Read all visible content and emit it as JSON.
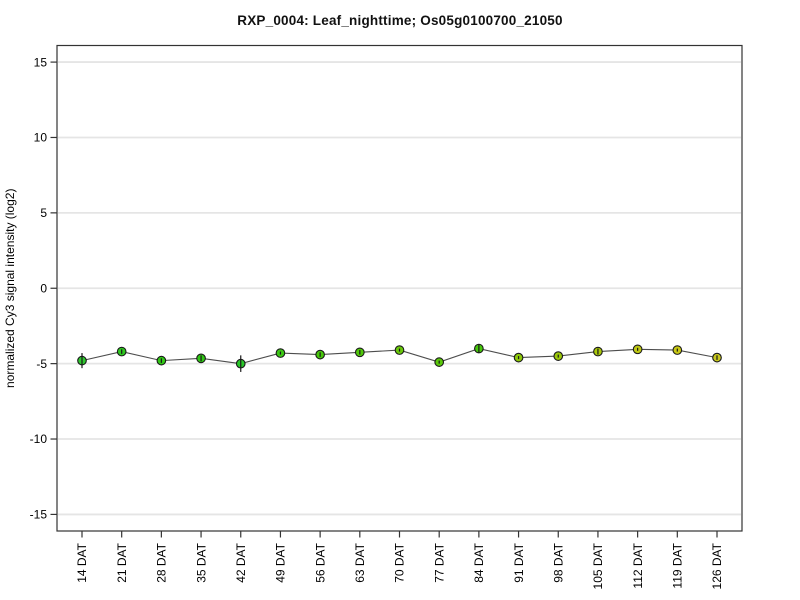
{
  "title": "RXP_0004: Leaf_nighttime; Os05g0100700_21050",
  "chart_data": {
    "type": "line",
    "title": "RXP_0004: Leaf_nighttime; Os05g0100700_21050",
    "xlabel": "",
    "ylabel": "normalized Cy3 signal intensity (log2)",
    "ylim": [
      -16.1,
      16.1
    ],
    "yticks": [
      -15,
      -10,
      -5,
      0,
      5,
      10,
      15
    ],
    "grid": "horizontal gridlines at every y tick",
    "legend": "none",
    "categories": [
      "14 DAT",
      "21 DAT",
      "28 DAT",
      "35 DAT",
      "42 DAT",
      "49 DAT",
      "56 DAT",
      "63 DAT",
      "70 DAT",
      "77 DAT",
      "84 DAT",
      "91 DAT",
      "98 DAT",
      "105 DAT",
      "112 DAT",
      "119 DAT",
      "126 DAT"
    ],
    "series": [
      {
        "name": "normalized Cy3 signal intensity (log2)",
        "values": [
          -4.8,
          -4.2,
          -4.8,
          -4.65,
          -5.0,
          -4.3,
          -4.4,
          -4.25,
          -4.1,
          -4.9,
          -4.0,
          -4.6,
          -4.5,
          -4.2,
          -4.05,
          -4.1,
          -4.6
        ],
        "errors": [
          0.5,
          0.15,
          0.15,
          0.2,
          0.55,
          0.1,
          0.15,
          0.15,
          0.1,
          0.1,
          0.3,
          0.1,
          0.1,
          0.2,
          0.1,
          0.1,
          0.15
        ],
        "point_colors": [
          "#2ec82e",
          "#2dc81e",
          "#30c814",
          "#30c814",
          "#28c828",
          "#3cc814",
          "#46c80a",
          "#50c80a",
          "#69c80a",
          "#5ac80a",
          "#46c80a",
          "#8cc80a",
          "#9bc80a",
          "#aac80a",
          "#bec814",
          "#c8c814",
          "#c8c81e"
        ],
        "line_color": "#4d4d4d",
        "marker": "circle-black-outline"
      }
    ]
  }
}
